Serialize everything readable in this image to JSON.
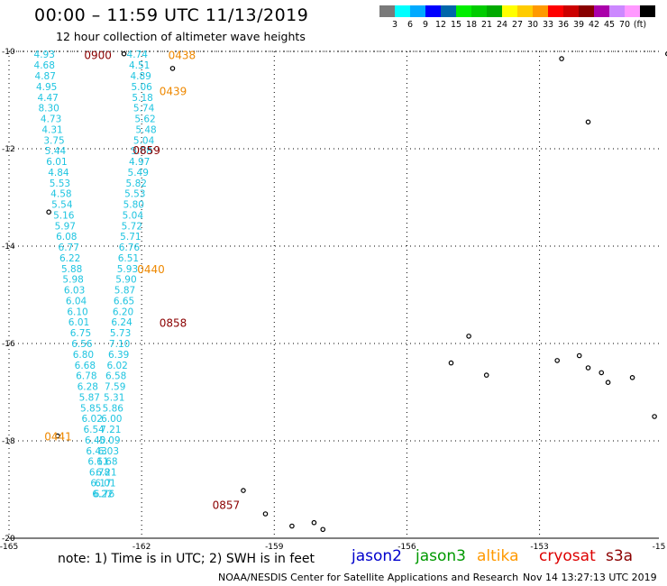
{
  "header": {
    "title": "00:00 – 11:59 UTC 11/13/2019",
    "subtitle": "12 hour collection of altimeter wave heights"
  },
  "colorbar": {
    "colors": [
      "#7a7a7a",
      "#00ffff",
      "#00aaff",
      "#0000ff",
      "#0066aa",
      "#00ee00",
      "#00cc00",
      "#00aa00",
      "#ffff00",
      "#ffcc00",
      "#ff9900",
      "#ff0000",
      "#cc0000",
      "#880000",
      "#aa00aa",
      "#cc88ff",
      "#ff99ff",
      "#000000"
    ],
    "labels": [
      "3",
      "6",
      "9",
      "12",
      "15",
      "18",
      "21",
      "24",
      "27",
      "30",
      "33",
      "36",
      "39",
      "42",
      "45",
      "70",
      "(ft)"
    ]
  },
  "axes": {
    "x_ticks": [
      "-165",
      "-162",
      "-159",
      "-156",
      "-153",
      "-15"
    ],
    "y_ticks": [
      "-10",
      "-12",
      "-14",
      "-16",
      "-18",
      "-20"
    ]
  },
  "time_labels": [
    {
      "text": "0900",
      "color": "#8b0000",
      "lon": -163.3,
      "lat": -10.08
    },
    {
      "text": "0438",
      "color": "#ee8800",
      "lon": -161.4,
      "lat": -10.08
    },
    {
      "text": "0439",
      "color": "#ee8800",
      "lon": -161.6,
      "lat": -10.82
    },
    {
      "text": "0859",
      "color": "#8b0000",
      "lon": -162.2,
      "lat": -12.04
    },
    {
      "text": "0440",
      "color": "#ee8800",
      "lon": -162.1,
      "lat": -14.48
    },
    {
      "text": "0858",
      "color": "#8b0000",
      "lon": -161.6,
      "lat": -15.58
    },
    {
      "text": "0441",
      "color": "#ee8800",
      "lon": -164.2,
      "lat": -17.92
    },
    {
      "text": "0857",
      "color": "#8b0000",
      "lon": -160.4,
      "lat": -19.32
    }
  ],
  "track_a": {
    "color": "#1ec4e0",
    "points": [
      {
        "lon": -164.2,
        "lat": -10.06,
        "v": "4.93"
      },
      {
        "lon": -164.2,
        "lat": -10.28,
        "v": "4.68"
      },
      {
        "lon": -164.18,
        "lat": -10.5,
        "v": "4.87"
      },
      {
        "lon": -164.15,
        "lat": -10.72,
        "v": "4.95"
      },
      {
        "lon": -164.12,
        "lat": -10.94,
        "v": "4.47"
      },
      {
        "lon": -164.1,
        "lat": -11.16,
        "v": "8.30"
      },
      {
        "lon": -164.05,
        "lat": -11.38,
        "v": "4.73"
      },
      {
        "lon": -164.02,
        "lat": -11.6,
        "v": "4.31"
      },
      {
        "lon": -163.98,
        "lat": -11.82,
        "v": "3.75"
      },
      {
        "lon": -163.95,
        "lat": -12.04,
        "v": "5.44"
      },
      {
        "lon": -163.92,
        "lat": -12.26,
        "v": "6.01"
      },
      {
        "lon": -163.88,
        "lat": -12.48,
        "v": "4.84"
      },
      {
        "lon": -163.85,
        "lat": -12.7,
        "v": "5.53"
      },
      {
        "lon": -163.82,
        "lat": -12.92,
        "v": "4.58"
      },
      {
        "lon": -163.8,
        "lat": -13.14,
        "v": "5.54"
      },
      {
        "lon": -163.76,
        "lat": -13.36,
        "v": "5.16"
      },
      {
        "lon": -163.73,
        "lat": -13.58,
        "v": "5.97"
      },
      {
        "lon": -163.7,
        "lat": -13.8,
        "v": "6.08"
      },
      {
        "lon": -163.65,
        "lat": -14.02,
        "v": "6.77"
      },
      {
        "lon": -163.62,
        "lat": -14.24,
        "v": "6.22"
      },
      {
        "lon": -163.58,
        "lat": -14.46,
        "v": "5.88"
      },
      {
        "lon": -163.55,
        "lat": -14.68,
        "v": "5.98"
      },
      {
        "lon": -163.52,
        "lat": -14.9,
        "v": "6.03"
      },
      {
        "lon": -163.48,
        "lat": -15.12,
        "v": "6.04"
      },
      {
        "lon": -163.45,
        "lat": -15.34,
        "v": "6.10"
      },
      {
        "lon": -163.42,
        "lat": -15.56,
        "v": "6.01"
      },
      {
        "lon": -163.38,
        "lat": -15.78,
        "v": "6.75"
      },
      {
        "lon": -163.35,
        "lat": -16.0,
        "v": "6.56"
      },
      {
        "lon": -163.32,
        "lat": -16.22,
        "v": "6.80"
      },
      {
        "lon": -163.28,
        "lat": -16.44,
        "v": "6.68"
      },
      {
        "lon": -163.25,
        "lat": -16.66,
        "v": "6.78"
      },
      {
        "lon": -163.22,
        "lat": -16.88,
        "v": "6.28"
      },
      {
        "lon": -163.18,
        "lat": -17.1,
        "v": "5.87"
      },
      {
        "lon": -163.15,
        "lat": -17.32,
        "v": "5.85"
      },
      {
        "lon": -163.12,
        "lat": -17.54,
        "v": "6.02"
      },
      {
        "lon": -163.08,
        "lat": -17.76,
        "v": "6.54"
      },
      {
        "lon": -163.05,
        "lat": -17.98,
        "v": "6.40"
      },
      {
        "lon": -163.02,
        "lat": -18.2,
        "v": "6.43"
      },
      {
        "lon": -162.98,
        "lat": -18.42,
        "v": "6.11"
      },
      {
        "lon": -162.95,
        "lat": -18.64,
        "v": "6.78"
      },
      {
        "lon": -162.92,
        "lat": -18.86,
        "v": "6.17"
      },
      {
        "lon": -162.88,
        "lat": -19.08,
        "v": "6.22"
      }
    ]
  },
  "track_b": {
    "color": "#1ec4e0",
    "points": [
      {
        "lon": -162.1,
        "lat": -10.06,
        "v": "4.74"
      },
      {
        "lon": -162.05,
        "lat": -10.28,
        "v": "4.51"
      },
      {
        "lon": -162.02,
        "lat": -10.5,
        "v": "4.89"
      },
      {
        "lon": -162.0,
        "lat": -10.72,
        "v": "5.06"
      },
      {
        "lon": -161.98,
        "lat": -10.94,
        "v": "5.18"
      },
      {
        "lon": -161.95,
        "lat": -11.16,
        "v": "5.74"
      },
      {
        "lon": -161.92,
        "lat": -11.38,
        "v": "5.62"
      },
      {
        "lon": -161.9,
        "lat": -11.6,
        "v": "5.48"
      },
      {
        "lon": -161.95,
        "lat": -11.82,
        "v": "5.04"
      },
      {
        "lon": -162.0,
        "lat": -12.04,
        "v": "5.08"
      },
      {
        "lon": -162.05,
        "lat": -12.26,
        "v": "4.97"
      },
      {
        "lon": -162.08,
        "lat": -12.48,
        "v": "5.49"
      },
      {
        "lon": -162.12,
        "lat": -12.7,
        "v": "5.82"
      },
      {
        "lon": -162.15,
        "lat": -12.92,
        "v": "5.53"
      },
      {
        "lon": -162.18,
        "lat": -13.14,
        "v": "5.80"
      },
      {
        "lon": -162.2,
        "lat": -13.36,
        "v": "5.04"
      },
      {
        "lon": -162.22,
        "lat": -13.58,
        "v": "5.72"
      },
      {
        "lon": -162.25,
        "lat": -13.8,
        "v": "5.71"
      },
      {
        "lon": -162.28,
        "lat": -14.02,
        "v": "6.76"
      },
      {
        "lon": -162.3,
        "lat": -14.24,
        "v": "6.51"
      },
      {
        "lon": -162.32,
        "lat": -14.46,
        "v": "5.93"
      },
      {
        "lon": -162.35,
        "lat": -14.68,
        "v": "5.90"
      },
      {
        "lon": -162.38,
        "lat": -14.9,
        "v": "5.87"
      },
      {
        "lon": -162.4,
        "lat": -15.12,
        "v": "6.65"
      },
      {
        "lon": -162.42,
        "lat": -15.34,
        "v": "6.20"
      },
      {
        "lon": -162.45,
        "lat": -15.56,
        "v": "6.24"
      },
      {
        "lon": -162.48,
        "lat": -15.78,
        "v": "5.73"
      },
      {
        "lon": -162.5,
        "lat": -16.0,
        "v": "7.10"
      },
      {
        "lon": -162.52,
        "lat": -16.22,
        "v": "6.39"
      },
      {
        "lon": -162.55,
        "lat": -16.44,
        "v": "6.02"
      },
      {
        "lon": -162.58,
        "lat": -16.66,
        "v": "6.58"
      },
      {
        "lon": -162.6,
        "lat": -16.88,
        "v": "7.59"
      },
      {
        "lon": -162.62,
        "lat": -17.1,
        "v": "5.31"
      },
      {
        "lon": -162.65,
        "lat": -17.32,
        "v": "5.86"
      },
      {
        "lon": -162.68,
        "lat": -17.54,
        "v": "6.00"
      },
      {
        "lon": -162.7,
        "lat": -17.76,
        "v": "7.21"
      },
      {
        "lon": -162.72,
        "lat": -17.98,
        "v": "5.09"
      },
      {
        "lon": -162.75,
        "lat": -18.2,
        "v": "6.03"
      },
      {
        "lon": -162.78,
        "lat": -18.42,
        "v": "6.68"
      },
      {
        "lon": -162.8,
        "lat": -18.64,
        "v": "6.21"
      },
      {
        "lon": -162.82,
        "lat": -18.86,
        "v": "6.01"
      },
      {
        "lon": -162.85,
        "lat": -19.08,
        "v": "6.76"
      }
    ]
  },
  "islands": [
    {
      "lon": -164.1,
      "lat": -13.3
    },
    {
      "lon": -163.9,
      "lat": -17.9
    },
    {
      "lon": -161.3,
      "lat": -10.35
    },
    {
      "lon": -162.4,
      "lat": -10.05
    },
    {
      "lon": -159.7,
      "lat": -19.02
    },
    {
      "lon": -159.2,
      "lat": -19.5
    },
    {
      "lon": -158.6,
      "lat": -19.75
    },
    {
      "lon": -158.1,
      "lat": -19.68
    },
    {
      "lon": -157.9,
      "lat": -19.82
    },
    {
      "lon": -154.6,
      "lat": -15.85
    },
    {
      "lon": -155.0,
      "lat": -16.4
    },
    {
      "lon": -154.2,
      "lat": -16.65
    },
    {
      "lon": -152.5,
      "lat": -10.15
    },
    {
      "lon": -151.9,
      "lat": -11.45
    },
    {
      "lon": -152.6,
      "lat": -16.35
    },
    {
      "lon": -152.1,
      "lat": -16.25
    },
    {
      "lon": -151.9,
      "lat": -16.5
    },
    {
      "lon": -151.6,
      "lat": -16.6
    },
    {
      "lon": -151.45,
      "lat": -16.8
    },
    {
      "lon": -150.9,
      "lat": -16.7
    },
    {
      "lon": -150.4,
      "lat": -17.5
    },
    {
      "lon": -150.1,
      "lat": -10.05
    }
  ],
  "footer": {
    "note": "note: 1) Time is in UTC; 2) SWH is in feet",
    "legend": [
      {
        "text": "jason2",
        "color": "#0000cc"
      },
      {
        "text": "jason3",
        "color": "#009900"
      },
      {
        "text": "altika",
        "color": "#ff9900"
      },
      {
        "text": "cryosat",
        "color": "#dd0000"
      },
      {
        "text": "s3a",
        "color": "#8b0000"
      }
    ],
    "credit": "NOAA/NESDIS Center for Satellite Applications and Research",
    "timestamp": "Nov 14 13:27:13 UTC 2019"
  }
}
